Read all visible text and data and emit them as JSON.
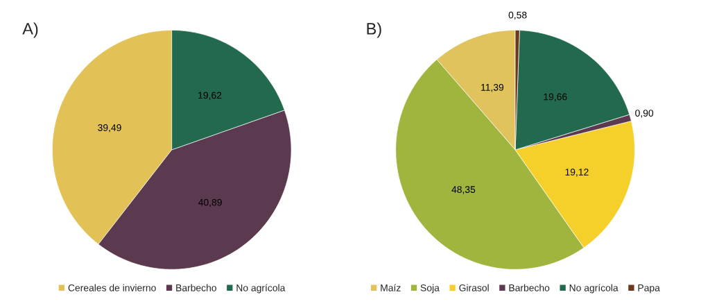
{
  "chart_data": [
    {
      "type": "pie",
      "title": "A)",
      "categories": [
        "Cereales de invierno",
        "Barbecho",
        "No agrícola"
      ],
      "values": [
        39.49,
        40.89,
        19.62
      ],
      "colors": [
        "#e2c257",
        "#5b3a50",
        "#23694d"
      ],
      "value_labels": [
        "39,49",
        "40,89",
        "19,62"
      ],
      "legend": "bottom"
    },
    {
      "type": "pie",
      "title": "B)",
      "categories": [
        "Maíz",
        "Soja",
        "Girasol",
        "Barbecho",
        "No agrícola",
        "Papa"
      ],
      "values": [
        11.39,
        48.35,
        19.12,
        0.9,
        19.66,
        0.58
      ],
      "colors": [
        "#e0c35c",
        "#9fb53e",
        "#f6d02a",
        "#5b3a50",
        "#23694d",
        "#6b3a1e"
      ],
      "value_labels": [
        "11,39",
        "48,35",
        "19,12",
        "0,90",
        "19,66",
        "0,58"
      ],
      "legend": "bottom"
    }
  ]
}
